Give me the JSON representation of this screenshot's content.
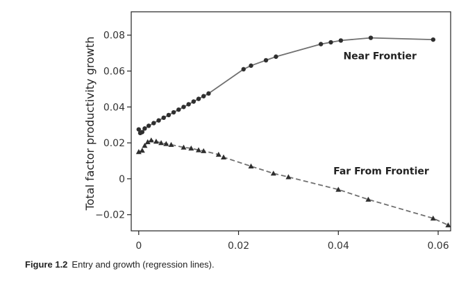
{
  "chart_data": {
    "type": "line",
    "title": "",
    "xlabel": "",
    "ylabel": "Total factor productivity growth",
    "xlim": [
      -0.0015,
      0.0625
    ],
    "ylim": [
      -0.029,
      0.093
    ],
    "xticks": [
      0,
      0.02,
      0.04,
      0.06
    ],
    "xtick_labels": [
      "0",
      "0.02",
      "0.04",
      "0.06"
    ],
    "yticks": [
      -0.02,
      0,
      0.02,
      0.04,
      0.06,
      0.08
    ],
    "ytick_labels": [
      "−0.02",
      "0",
      "0.02",
      "0.04",
      "0.06",
      "0.08"
    ],
    "grid": false,
    "series": [
      {
        "name": "Near Frontier",
        "line_style": "solid",
        "marker": "circle",
        "color": "#707070",
        "marker_color": "#2f2f2f",
        "points": [
          {
            "x": 0.0,
            "y": 0.0275
          },
          {
            "x": 0.0003,
            "y": 0.0255
          },
          {
            "x": 0.0007,
            "y": 0.026
          },
          {
            "x": 0.0012,
            "y": 0.028
          },
          {
            "x": 0.002,
            "y": 0.0295
          },
          {
            "x": 0.003,
            "y": 0.031
          },
          {
            "x": 0.004,
            "y": 0.0325
          },
          {
            "x": 0.005,
            "y": 0.034
          },
          {
            "x": 0.006,
            "y": 0.0355
          },
          {
            "x": 0.007,
            "y": 0.037
          },
          {
            "x": 0.008,
            "y": 0.0385
          },
          {
            "x": 0.009,
            "y": 0.04
          },
          {
            "x": 0.01,
            "y": 0.0415
          },
          {
            "x": 0.011,
            "y": 0.043
          },
          {
            "x": 0.012,
            "y": 0.0445
          },
          {
            "x": 0.013,
            "y": 0.046
          },
          {
            "x": 0.014,
            "y": 0.0475
          },
          {
            "x": 0.021,
            "y": 0.061
          },
          {
            "x": 0.0225,
            "y": 0.063
          },
          {
            "x": 0.0255,
            "y": 0.066
          },
          {
            "x": 0.0275,
            "y": 0.068
          },
          {
            "x": 0.0365,
            "y": 0.075
          },
          {
            "x": 0.0385,
            "y": 0.076
          },
          {
            "x": 0.0405,
            "y": 0.077
          },
          {
            "x": 0.0465,
            "y": 0.0785
          },
          {
            "x": 0.059,
            "y": 0.0775
          }
        ],
        "label": "Near Frontier"
      },
      {
        "name": "Far From Frontier",
        "line_style": "dashed",
        "marker": "triangle",
        "color": "#707070",
        "marker_color": "#2f2f2f",
        "points": [
          {
            "x": 0.0,
            "y": 0.015
          },
          {
            "x": 0.0007,
            "y": 0.0158
          },
          {
            "x": 0.0012,
            "y": 0.0185
          },
          {
            "x": 0.0018,
            "y": 0.0205
          },
          {
            "x": 0.0025,
            "y": 0.0215
          },
          {
            "x": 0.0035,
            "y": 0.0208
          },
          {
            "x": 0.0045,
            "y": 0.02
          },
          {
            "x": 0.0055,
            "y": 0.0195
          },
          {
            "x": 0.0065,
            "y": 0.019
          },
          {
            "x": 0.009,
            "y": 0.0175
          },
          {
            "x": 0.0105,
            "y": 0.017
          },
          {
            "x": 0.012,
            "y": 0.016
          },
          {
            "x": 0.013,
            "y": 0.0155
          },
          {
            "x": 0.016,
            "y": 0.0135
          },
          {
            "x": 0.017,
            "y": 0.012
          },
          {
            "x": 0.0225,
            "y": 0.007
          },
          {
            "x": 0.027,
            "y": 0.003
          },
          {
            "x": 0.03,
            "y": 0.001
          },
          {
            "x": 0.04,
            "y": -0.006
          },
          {
            "x": 0.046,
            "y": -0.0115
          },
          {
            "x": 0.059,
            "y": -0.022
          },
          {
            "x": 0.062,
            "y": -0.0258
          }
        ],
        "label": "Far From Frontier"
      }
    ],
    "annotations": [
      {
        "text": "Near Frontier",
        "x": 0.041,
        "y": 0.0665
      },
      {
        "text": "Far From Frontier",
        "x": 0.039,
        "y": 0.0025
      }
    ]
  },
  "caption": {
    "label": "Figure 1.2",
    "text": "Entry and growth (regression lines)."
  }
}
